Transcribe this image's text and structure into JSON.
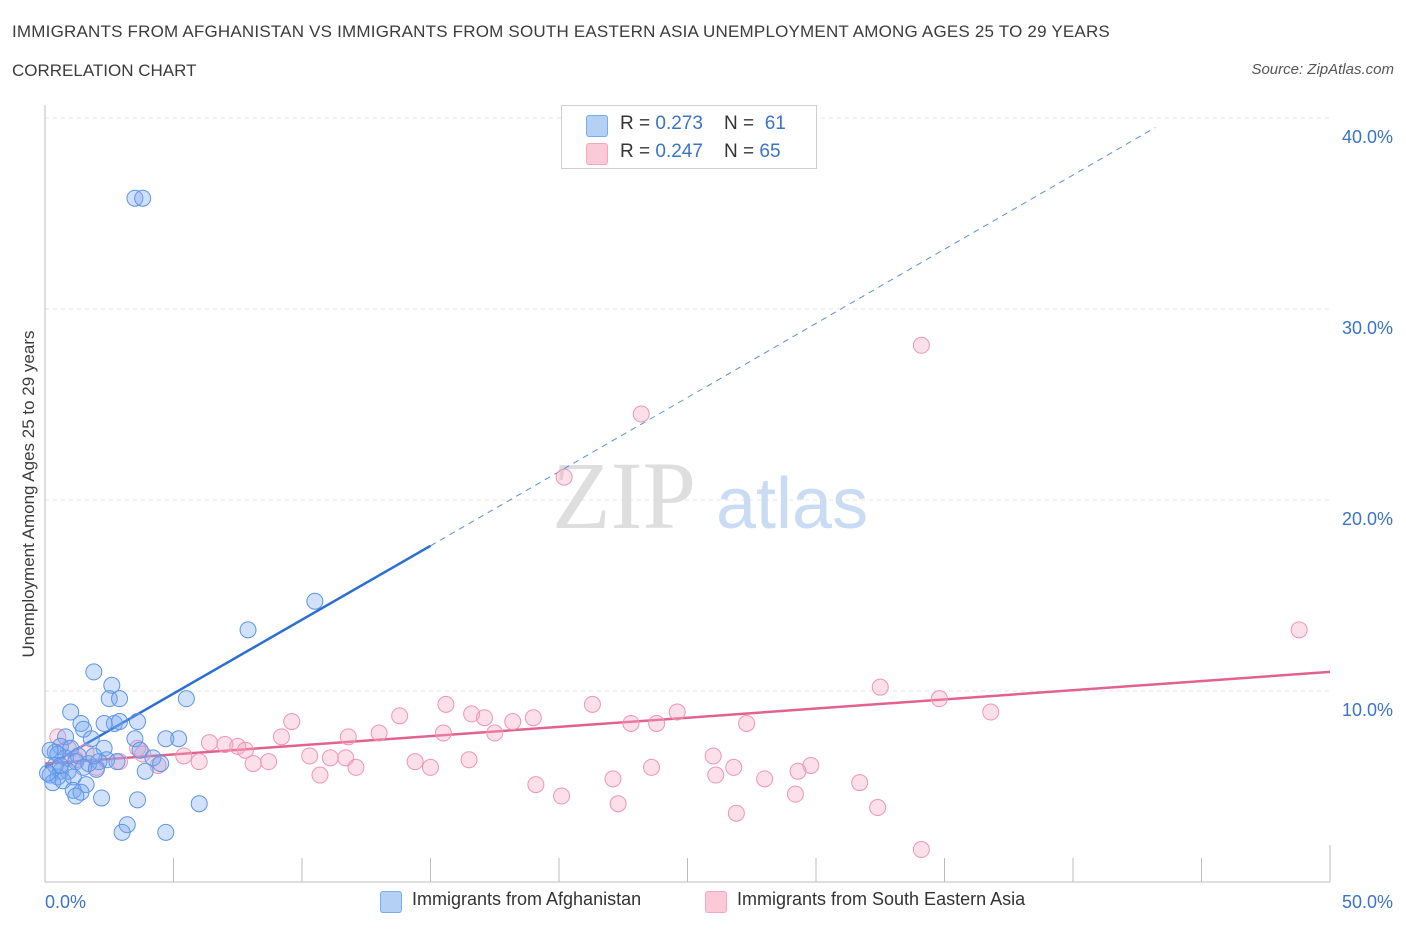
{
  "title": "IMMIGRANTS FROM AFGHANISTAN VS IMMIGRANTS FROM SOUTH EASTERN ASIA UNEMPLOYMENT AMONG AGES 25 TO 29 YEARS",
  "subtitle": "CORRELATION CHART",
  "source": "Source: ZipAtlas.com",
  "watermark": {
    "zip": "ZIP",
    "atlas": "atlas"
  },
  "legend": {
    "rows": [
      {
        "r_label": "R = ",
        "r_value": "0.273",
        "n_label": "N = ",
        "n_value": "61"
      },
      {
        "r_label": "R = ",
        "r_value": "0.247",
        "n_label": "N = ",
        "n_value": "65"
      }
    ]
  },
  "chart_data": {
    "type": "scatter",
    "ylabel": "Unemployment Among Ages 25 to 29 years",
    "xlim": [
      0,
      50
    ],
    "ylim": [
      0,
      40
    ],
    "x_tick_labels": [
      {
        "value": 0,
        "label": "0.0%"
      },
      {
        "value": 50,
        "label": "50.0%"
      }
    ],
    "y_tick_labels": [
      {
        "value": 10,
        "label": "10.0%"
      },
      {
        "value": 20,
        "label": "20.0%"
      },
      {
        "value": 30,
        "label": "30.0%"
      },
      {
        "value": 40,
        "label": "40.0%"
      }
    ],
    "grid": true,
    "series": [
      {
        "name": "Immigrants from Afghanistan",
        "color": "#7aaaf0",
        "line_color": "#2a6fd1",
        "trend": {
          "x0": 0,
          "y0": 6.0,
          "x_solid_end": 15,
          "y_solid_end": 17.6,
          "x1": 43.2,
          "y1": 39.5
        },
        "points": [
          [
            3.5,
            35.8
          ],
          [
            3.8,
            35.8
          ],
          [
            10.5,
            14.7
          ],
          [
            7.9,
            13.2
          ],
          [
            1.9,
            11.0
          ],
          [
            2.6,
            10.3
          ],
          [
            2.5,
            9.6
          ],
          [
            2.9,
            9.6
          ],
          [
            5.5,
            9.6
          ],
          [
            1.0,
            8.9
          ],
          [
            1.4,
            8.3
          ],
          [
            2.7,
            8.3
          ],
          [
            2.9,
            8.4
          ],
          [
            3.6,
            8.4
          ],
          [
            2.3,
            8.3
          ],
          [
            1.5,
            8.0
          ],
          [
            0.8,
            7.6
          ],
          [
            1.8,
            7.5
          ],
          [
            3.5,
            7.5
          ],
          [
            5.2,
            7.5
          ],
          [
            4.7,
            7.5
          ],
          [
            0.6,
            7.1
          ],
          [
            1.0,
            7.0
          ],
          [
            2.3,
            7.0
          ],
          [
            3.7,
            6.9
          ],
          [
            0.4,
            6.8
          ],
          [
            0.5,
            6.7
          ],
          [
            0.8,
            6.5
          ],
          [
            1.3,
            6.6
          ],
          [
            2.4,
            6.4
          ],
          [
            4.2,
            6.5
          ],
          [
            1.2,
            6.3
          ],
          [
            1.7,
            6.2
          ],
          [
            2.1,
            6.3
          ],
          [
            2.8,
            6.3
          ],
          [
            1.5,
            6.0
          ],
          [
            2.0,
            5.9
          ],
          [
            0.6,
            5.8
          ],
          [
            0.9,
            5.8
          ],
          [
            3.9,
            5.8
          ],
          [
            0.2,
            5.6
          ],
          [
            0.5,
            5.5
          ],
          [
            1.1,
            5.5
          ],
          [
            0.3,
            5.2
          ],
          [
            0.7,
            5.3
          ],
          [
            1.6,
            5.1
          ],
          [
            1.1,
            4.8
          ],
          [
            1.4,
            4.7
          ],
          [
            1.2,
            4.5
          ],
          [
            2.2,
            4.4
          ],
          [
            3.6,
            4.3
          ],
          [
            6.0,
            4.1
          ],
          [
            3.2,
            3.0
          ],
          [
            3.0,
            2.6
          ],
          [
            4.7,
            2.6
          ],
          [
            0.4,
            6.1
          ],
          [
            4.5,
            6.2
          ],
          [
            1.9,
            6.6
          ],
          [
            0.2,
            6.9
          ],
          [
            0.6,
            6.1
          ],
          [
            0.1,
            5.7
          ]
        ]
      },
      {
        "name": "Immigrants from South Eastern Asia",
        "color": "#f5a7bf",
        "line_color": "#e2628f",
        "trend": {
          "x0": 0,
          "y0": 6.2,
          "x1": 50,
          "y1": 11.0
        },
        "points": [
          [
            34.1,
            28.1
          ],
          [
            23.2,
            24.5
          ],
          [
            20.2,
            21.2
          ],
          [
            48.8,
            13.2
          ],
          [
            32.5,
            10.2
          ],
          [
            34.8,
            9.6
          ],
          [
            15.6,
            9.3
          ],
          [
            16.6,
            8.8
          ],
          [
            21.3,
            9.3
          ],
          [
            13.8,
            8.7
          ],
          [
            17.1,
            8.6
          ],
          [
            18.2,
            8.4
          ],
          [
            19.0,
            8.6
          ],
          [
            9.6,
            8.4
          ],
          [
            36.8,
            8.9
          ],
          [
            24.6,
            8.9
          ],
          [
            22.8,
            8.3
          ],
          [
            23.8,
            8.3
          ],
          [
            27.3,
            8.3
          ],
          [
            17.5,
            7.8
          ],
          [
            13.0,
            7.8
          ],
          [
            11.8,
            7.6
          ],
          [
            15.5,
            7.8
          ],
          [
            9.2,
            7.6
          ],
          [
            6.4,
            7.3
          ],
          [
            7.0,
            7.2
          ],
          [
            7.5,
            7.1
          ],
          [
            7.8,
            6.9
          ],
          [
            3.6,
            7.0
          ],
          [
            3.8,
            6.7
          ],
          [
            5.4,
            6.6
          ],
          [
            10.3,
            6.6
          ],
          [
            11.7,
            6.5
          ],
          [
            11.1,
            6.5
          ],
          [
            6.0,
            6.3
          ],
          [
            8.1,
            6.2
          ],
          [
            8.7,
            6.3
          ],
          [
            14.4,
            6.3
          ],
          [
            16.5,
            6.4
          ],
          [
            26.0,
            6.6
          ],
          [
            0.5,
            7.6
          ],
          [
            0.9,
            7.0
          ],
          [
            1.6,
            6.8
          ],
          [
            2.9,
            6.3
          ],
          [
            4.4,
            6.1
          ],
          [
            12.1,
            6.0
          ],
          [
            15.0,
            6.0
          ],
          [
            23.6,
            6.0
          ],
          [
            26.8,
            6.0
          ],
          [
            29.8,
            6.1
          ],
          [
            29.3,
            5.8
          ],
          [
            10.7,
            5.6
          ],
          [
            26.1,
            5.6
          ],
          [
            22.1,
            5.4
          ],
          [
            28.0,
            5.4
          ],
          [
            31.7,
            5.2
          ],
          [
            19.1,
            5.1
          ],
          [
            29.2,
            4.6
          ],
          [
            20.1,
            4.5
          ],
          [
            22.3,
            4.1
          ],
          [
            32.4,
            3.9
          ],
          [
            26.9,
            3.6
          ],
          [
            34.1,
            1.7
          ],
          [
            1.2,
            6.4
          ],
          [
            2.0,
            6.0
          ]
        ]
      }
    ]
  }
}
